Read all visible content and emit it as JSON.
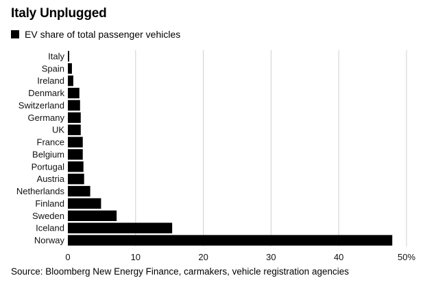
{
  "chart_data": {
    "type": "bar",
    "orientation": "horizontal",
    "title": "Italy Unplugged",
    "categories": [
      "Italy",
      "Spain",
      "Ireland",
      "Denmark",
      "Switzerland",
      "Germany",
      "UK",
      "France",
      "Belgium",
      "Portugal",
      "Austria",
      "Netherlands",
      "Finland",
      "Sweden",
      "Iceland",
      "Norway"
    ],
    "series": [
      {
        "name": "EV share of total passenger vehicles",
        "color": "#000000",
        "values": [
          0.2,
          0.6,
          0.8,
          1.7,
          1.8,
          1.9,
          1.9,
          2.2,
          2.2,
          2.3,
          2.4,
          3.3,
          4.9,
          7.2,
          15.4,
          47.9
        ]
      }
    ],
    "xlim": [
      0,
      50
    ],
    "xticks": [
      0,
      10,
      20,
      30,
      40,
      50
    ],
    "xtick_labels": [
      "0",
      "10",
      "20",
      "30",
      "40",
      "50%"
    ],
    "grid": "vertical",
    "legend_position": "top-left",
    "xlabel": "",
    "ylabel": ""
  },
  "legend": {
    "label": "EV share of total passenger vehicles"
  },
  "source": "Source: Bloomberg New Energy Finance, carmakers, vehicle registration agencies"
}
